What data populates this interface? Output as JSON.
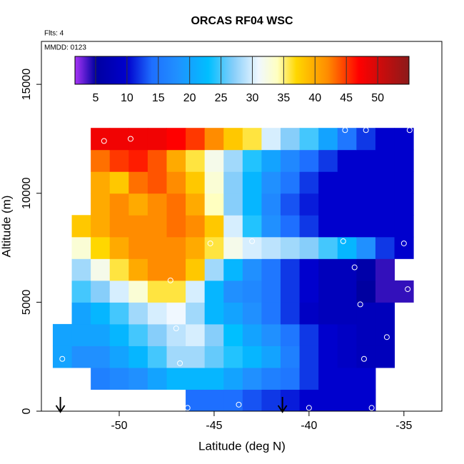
{
  "chart_data": {
    "type": "heatmap",
    "title": "ORCAS RF04 WSC",
    "annotations": [
      "Flts: 4",
      "MMDD: 0123"
    ],
    "x_label": "Latitude (deg N)",
    "y_label": "Altitude (m)",
    "xlim": [
      -54.1,
      -33.0
    ],
    "ylim": [
      0,
      16970
    ],
    "xticks": [
      -50,
      -45,
      -40,
      -35
    ],
    "yticks": [
      0,
      5000,
      10000,
      15000
    ],
    "x": [
      -53,
      -52,
      -51,
      -50,
      -49,
      -48,
      -47,
      -46,
      -45,
      -44,
      -43,
      -42,
      -41,
      -40,
      -39,
      -38,
      -37,
      -36,
      -35
    ],
    "y": [
      500,
      1500,
      2500,
      3500,
      4500,
      5500,
      6500,
      7500,
      8500,
      9500,
      10500,
      11500,
      12500
    ],
    "z": [
      [
        null,
        null,
        null,
        null,
        null,
        null,
        null,
        14,
        14,
        14,
        13,
        12,
        11,
        10,
        10,
        10,
        10,
        null,
        null
      ],
      [
        null,
        null,
        16,
        17,
        18,
        20,
        22,
        22,
        22,
        20,
        18,
        16,
        15,
        12,
        10,
        10,
        10,
        null,
        null
      ],
      [
        20,
        18,
        18,
        20,
        22,
        25,
        28,
        28,
        26,
        24,
        22,
        20,
        16,
        12,
        10,
        9,
        8,
        8,
        null
      ],
      [
        20,
        20,
        20,
        22,
        25,
        27,
        29,
        30,
        27,
        23,
        20,
        18,
        15,
        12,
        10,
        9,
        8,
        8,
        null
      ],
      [
        null,
        20,
        22,
        25,
        28,
        30,
        31,
        28,
        22,
        20,
        18,
        15,
        12,
        9,
        8,
        8,
        8,
        8,
        null
      ],
      [
        null,
        25,
        27,
        30,
        33,
        36,
        36,
        30,
        22,
        18,
        17,
        15,
        12,
        10,
        8,
        8,
        5,
        4,
        4
      ],
      [
        null,
        28,
        32,
        36,
        40,
        42,
        42,
        38,
        28,
        22,
        18,
        15,
        12,
        10,
        8,
        8,
        6,
        4,
        null
      ],
      [
        null,
        33,
        37,
        40,
        42,
        42,
        42,
        40,
        36,
        32,
        30,
        29,
        28,
        27,
        25,
        22,
        18,
        12,
        10
      ],
      [
        null,
        38,
        40,
        42,
        42,
        42,
        43,
        42,
        38,
        30,
        24,
        18,
        14,
        12,
        10,
        10,
        10,
        10,
        10
      ],
      [
        null,
        null,
        40,
        42,
        40,
        42,
        43,
        40,
        34,
        27,
        22,
        17,
        13,
        11,
        10,
        10,
        10,
        10,
        10
      ],
      [
        null,
        null,
        40,
        38,
        43,
        44,
        42,
        38,
        33,
        27,
        22,
        18,
        15,
        12,
        10,
        10,
        10,
        10,
        10
      ],
      [
        null,
        null,
        43,
        45,
        46,
        44,
        40,
        36,
        32,
        28,
        24,
        20,
        17,
        14,
        12,
        10,
        10,
        10,
        10
      ],
      [
        null,
        null,
        48,
        48,
        48,
        48,
        47,
        45,
        42,
        38,
        36,
        30,
        27,
        25,
        20,
        15,
        12,
        10,
        10
      ]
    ],
    "colorbar_lim": [
      1.7,
      55
    ],
    "colorbar_ticks": [
      5,
      10,
      15,
      20,
      25,
      30,
      35,
      40,
      45,
      50
    ],
    "colorscale": [
      [
        2,
        "#9a30f0"
      ],
      [
        5,
        "#0000a0"
      ],
      [
        10,
        "#0000cd"
      ],
      [
        14,
        "#1e6fff"
      ],
      [
        18,
        "#2090ff"
      ],
      [
        23,
        "#00bfff"
      ],
      [
        27,
        "#87cefa"
      ],
      [
        31,
        "#f0f8ff"
      ],
      [
        34,
        "#ffffc0"
      ],
      [
        37,
        "#ffd700"
      ],
      [
        42,
        "#ff8c00"
      ],
      [
        47,
        "#ff0000"
      ],
      [
        55,
        "#8b1a1a"
      ]
    ],
    "points": {
      "x": [
        -50.8,
        -49.4,
        -38.1,
        -37,
        -34.7,
        -45.2,
        -43,
        -38.2,
        -35,
        -37.6,
        -47.3,
        -34.8,
        -37.3,
        -47,
        -35.9,
        -53,
        -46.8,
        -37.1,
        -36.2,
        -46.4,
        -43.7,
        -40,
        -36.7
      ],
      "y": [
        12400,
        12500,
        12900,
        12900,
        12900,
        7700,
        7800,
        7800,
        7700,
        6600,
        6000,
        5600,
        4900,
        3800,
        3400,
        2400,
        2200,
        2400,
        1800,
        150,
        300,
        150,
        150
      ]
    },
    "arrows": [
      -53.1,
      -41.4
    ]
  }
}
